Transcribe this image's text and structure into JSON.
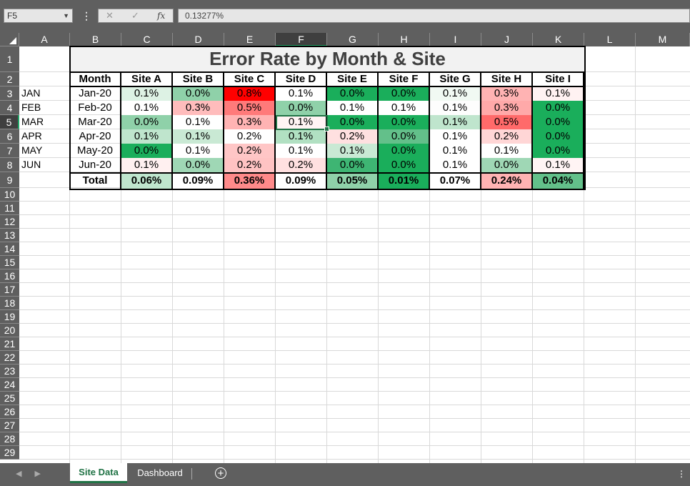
{
  "formula_bar": {
    "name_box": "F5",
    "formula_value": "0.13277%",
    "cancel_glyph": "✕",
    "enter_glyph": "✓",
    "fx_glyph": "fx"
  },
  "columns": [
    "A",
    "B",
    "C",
    "D",
    "E",
    "F",
    "G",
    "H",
    "I",
    "J",
    "K",
    "L",
    "M"
  ],
  "rows": [
    "1",
    "2",
    "3",
    "4",
    "5",
    "6",
    "7",
    "8",
    "9",
    "10",
    "11",
    "12",
    "13",
    "14",
    "15",
    "16",
    "17",
    "18",
    "19",
    "20",
    "21",
    "22",
    "23",
    "24",
    "25",
    "26",
    "27",
    "28",
    "29"
  ],
  "selected": {
    "column": "F",
    "row": "5"
  },
  "sheet": {
    "title": "Error Rate by Month & Site",
    "header": [
      "Month",
      "Site A",
      "Site B",
      "Site C",
      "Site D",
      "Site E",
      "Site F",
      "Site G",
      "Site H",
      "Site I"
    ],
    "month_labels": [
      "JAN",
      "FEB",
      "MAR",
      "APR",
      "MAY",
      "JUN"
    ],
    "data_rows": [
      {
        "month": "Jan-20",
        "values": [
          "0.1%",
          "0.0%",
          "0.8%",
          "0.1%",
          "0.0%",
          "0.0%",
          "0.1%",
          "0.3%",
          "0.1%"
        ],
        "colors": [
          "#ddf2e4",
          "#8fd1a9",
          "#ff0000",
          "#ffffff",
          "#1aae5b",
          "#1aae5b",
          "#f1f9f3",
          "#ffb3b3",
          "#fff2f2"
        ]
      },
      {
        "month": "Feb-20",
        "values": [
          "0.1%",
          "0.3%",
          "0.5%",
          "0.0%",
          "0.1%",
          "0.1%",
          "0.1%",
          "0.3%",
          "0.0%"
        ],
        "colors": [
          "#ffffff",
          "#ffbcbc",
          "#ff7a7a",
          "#8fd1a9",
          "#ffffff",
          "#ffffff",
          "#fdfdfd",
          "#ffa9a9",
          "#1aae5b"
        ]
      },
      {
        "month": "Mar-20",
        "values": [
          "0.0%",
          "0.1%",
          "0.3%",
          "0.1%",
          "0.0%",
          "0.0%",
          "0.1%",
          "0.5%",
          "0.0%"
        ],
        "colors": [
          "#8fd1a9",
          "#ffffff",
          "#ffb3b3",
          "#fff4f4",
          "#1aae5b",
          "#1aae5b",
          "#bfe5cd",
          "#ff6a6a",
          "#1aae5b"
        ]
      },
      {
        "month": "Apr-20",
        "values": [
          "0.1%",
          "0.1%",
          "0.2%",
          "0.1%",
          "0.2%",
          "0.0%",
          "0.1%",
          "0.2%",
          "0.0%"
        ],
        "colors": [
          "#bfe5cd",
          "#c9e9d4",
          "#ffffff",
          "#b1e0c2",
          "#ffe0e0",
          "#63c08a",
          "#ffffff",
          "#ffd6d6",
          "#1aae5b"
        ]
      },
      {
        "month": "May-20",
        "values": [
          "0.0%",
          "0.1%",
          "0.2%",
          "0.1%",
          "0.1%",
          "0.0%",
          "0.1%",
          "0.1%",
          "0.0%"
        ],
        "colors": [
          "#1aae5b",
          "#ffffff",
          "#ffc6c6",
          "#ffffff",
          "#c9e9d4",
          "#1aae5b",
          "#ffffff",
          "#ffffff",
          "#1aae5b"
        ]
      },
      {
        "month": "Jun-20",
        "values": [
          "0.1%",
          "0.0%",
          "0.2%",
          "0.2%",
          "0.0%",
          "0.0%",
          "0.1%",
          "0.0%",
          "0.1%"
        ],
        "colors": [
          "#fff0f0",
          "#9fd7b5",
          "#ffc3c3",
          "#ffe0e0",
          "#3eb573",
          "#1aae5b",
          "#ffffff",
          "#9fd7b5",
          "#fff4f4"
        ]
      }
    ],
    "total_label": "Total",
    "totals": [
      "0.06%",
      "0.09%",
      "0.36%",
      "0.09%",
      "0.05%",
      "0.01%",
      "0.07%",
      "0.24%",
      "0.04%"
    ],
    "total_colors": [
      "#bfe5cd",
      "#ffffff",
      "#ff8a8a",
      "#ffffff",
      "#8fd1a9",
      "#1aae5b",
      "#ffffff",
      "#ffb3b3",
      "#63c08a"
    ]
  },
  "tabs": {
    "active": "Site Data",
    "other": "Dashboard",
    "add_glyph": "+"
  }
}
